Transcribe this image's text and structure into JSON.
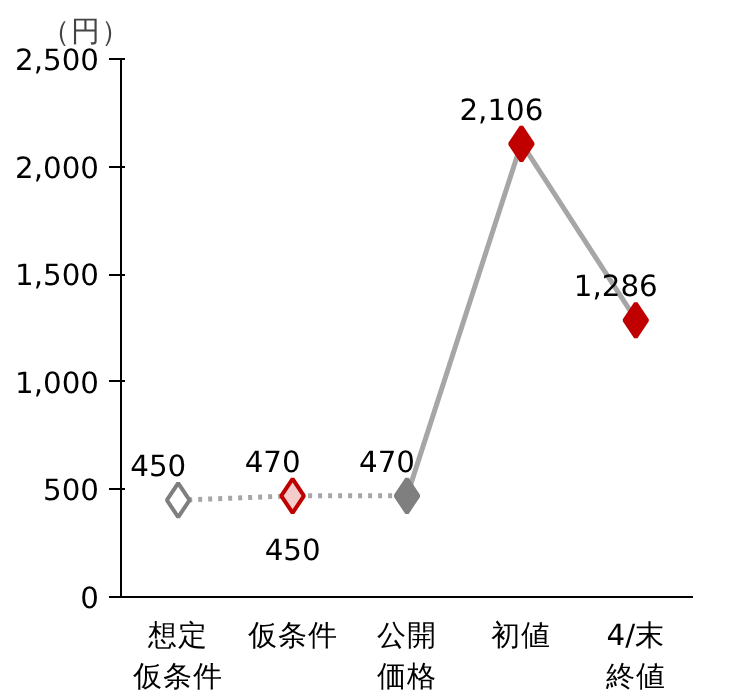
{
  "chart_data": {
    "type": "line",
    "ylabel": "（円）",
    "categories": [
      "想定仮条件",
      "仮条件",
      "公開価格",
      "初値",
      "4/末終値"
    ],
    "ylim": [
      0,
      2500
    ],
    "yticks": [
      0,
      {
        "value": 500,
        "label": "500"
      },
      {
        "value": 1000,
        "label": "1,000"
      },
      {
        "value": 1500,
        "label": "1,500"
      },
      {
        "value": 2000,
        "label": "2,000"
      },
      {
        "value": 2500,
        "label": "2,500"
      }
    ],
    "grid": false,
    "series": [
      {
        "marker": "none",
        "color": "#a6a6a6",
        "line_style": "dotted",
        "values": [
          450,
          470,
          470,
          null,
          null
        ]
      },
      {
        "marker": "none",
        "color": "#a6a6a6",
        "line_style": "solid",
        "values": [
          null,
          null,
          470,
          2110,
          1290
        ]
      },
      {
        "type": "scatter",
        "marker": "diamond",
        "colors": [
          "#ffffff",
          "#f4cccc",
          "#7f7f7f",
          "#c00000",
          "#c00000"
        ],
        "values": [
          450,
          470,
          470,
          2106,
          1286
        ],
        "value_labels": [
          "450",
          "470",
          "470",
          "2,106",
          "1,286"
        ]
      }
    ],
    "annotations": [
      {
        "text": "450",
        "x": "仮条件",
        "y": 450
      }
    ]
  }
}
